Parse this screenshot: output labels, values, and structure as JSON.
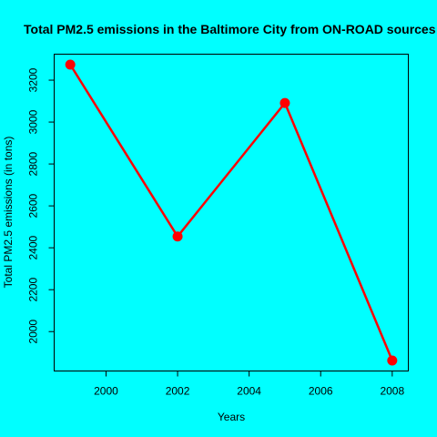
{
  "chart_data": {
    "type": "line",
    "title": "Total PM2.5 emissions in the Baltimore City from ON-ROAD sources",
    "xlabel": "Years",
    "ylabel": "Total PM2.5 emissions (in tons)",
    "x": [
      1999,
      2002,
      2005,
      2008
    ],
    "series": [
      {
        "values": [
          3274,
          2454,
          3091,
          1862
        ]
      }
    ],
    "xlim": [
      1998.55,
      2008.45
    ],
    "ylim": [
      1812,
      3324
    ],
    "x_ticks": [
      2000,
      2002,
      2004,
      2006,
      2008
    ],
    "y_ticks": [
      2000,
      2200,
      2400,
      2600,
      2800,
      3000,
      3200
    ],
    "grid": false,
    "legend": "none",
    "colors": {
      "background": "#00FFFF",
      "line": "#FF0000",
      "marker": "#FF0000",
      "axis": "#000000"
    }
  }
}
